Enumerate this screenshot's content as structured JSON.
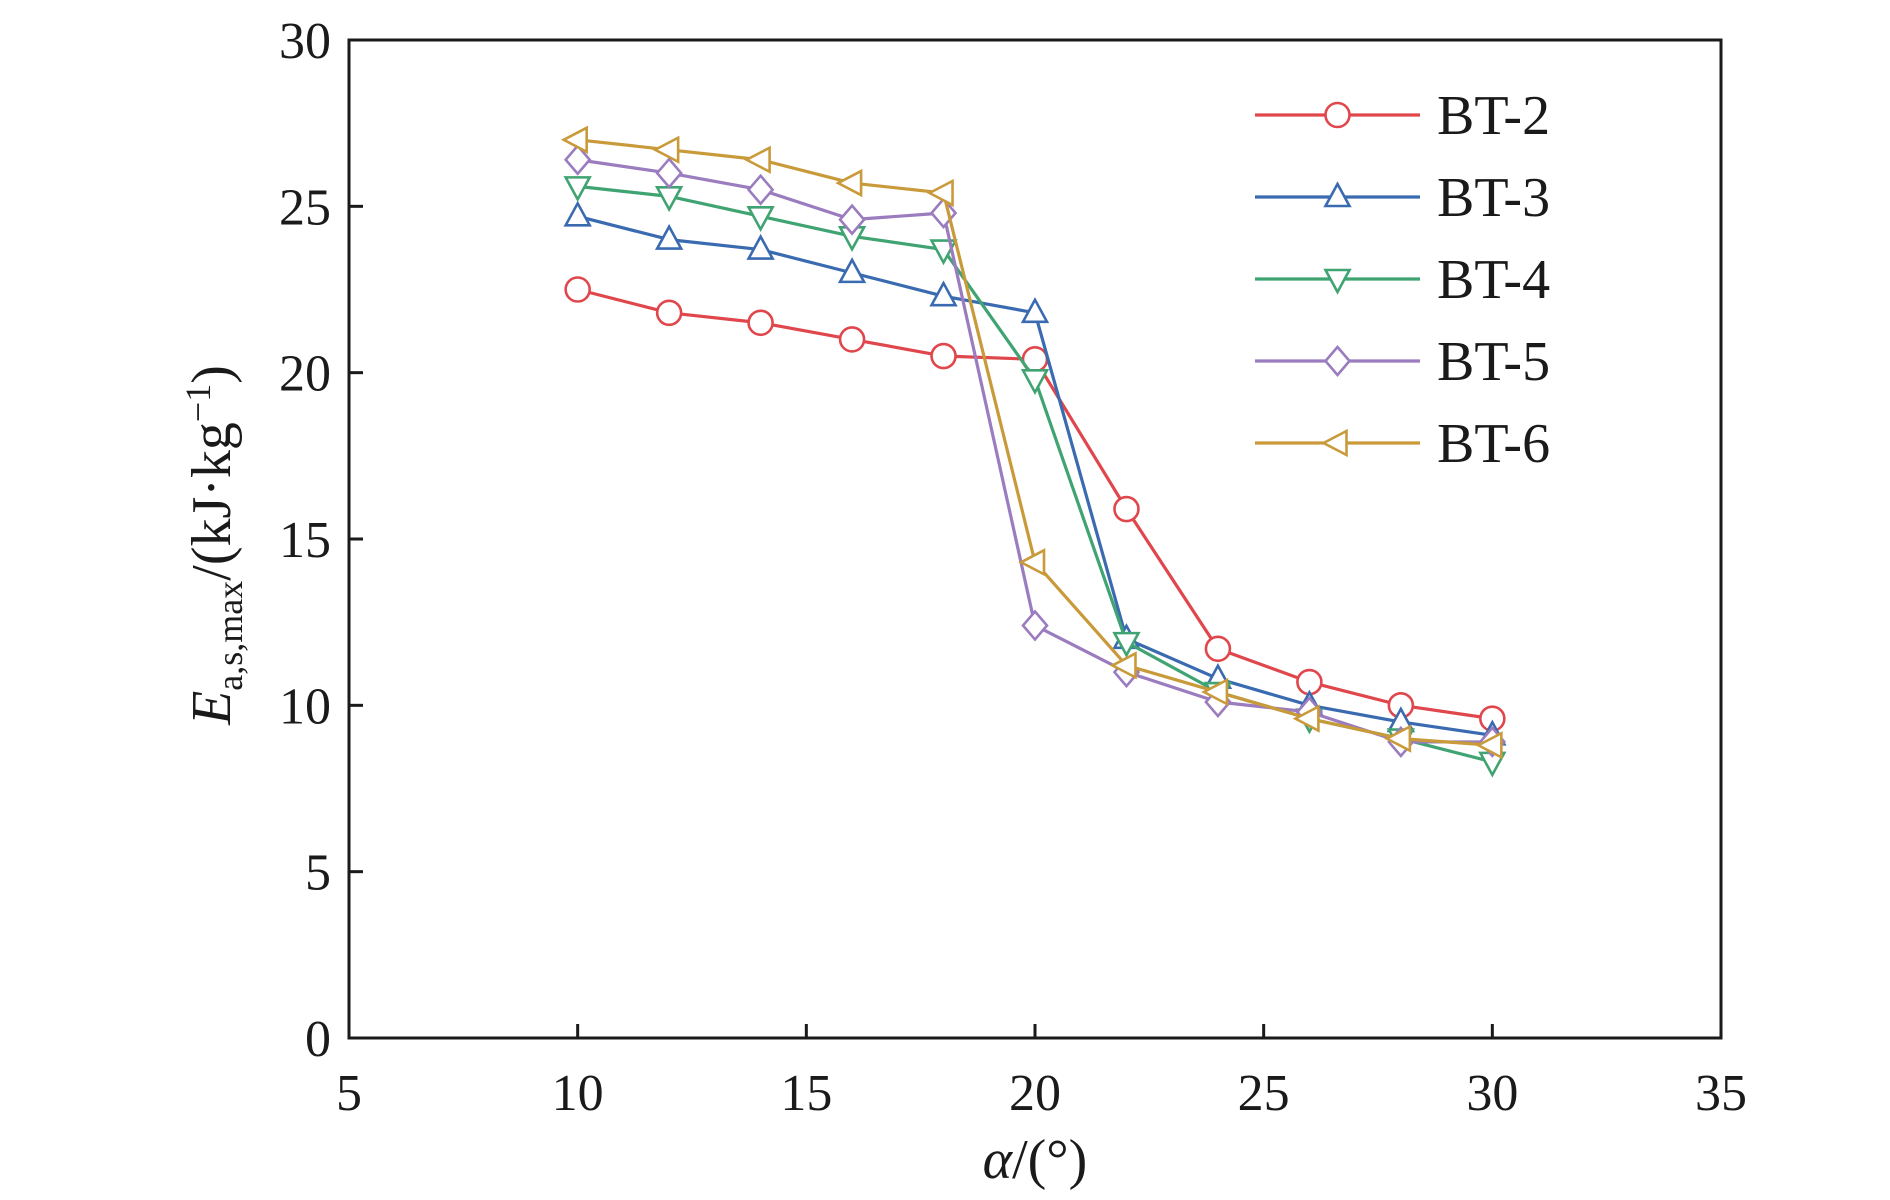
{
  "chart_data": {
    "type": "line",
    "xlabel": {
      "symbol": "α",
      "suffix": "/(°)"
    },
    "ylabel": {
      "main": "E",
      "sub": "a,s,max",
      "unit": "/(kJ·kg",
      "sup": "−1",
      "close": ")"
    },
    "xlim": [
      5,
      35
    ],
    "ylim": [
      0,
      30
    ],
    "xticks": [
      5,
      10,
      15,
      20,
      25,
      30,
      35
    ],
    "yticks": [
      0,
      5,
      10,
      15,
      20,
      25,
      30
    ],
    "grid": false,
    "legend_position": "top-right",
    "x": [
      10,
      12,
      14,
      16,
      18,
      20,
      22,
      24,
      26,
      28,
      30
    ],
    "series": [
      {
        "name": "BT-2",
        "color": "#e0474c",
        "marker": "circle",
        "values": [
          22.5,
          21.8,
          21.5,
          21.0,
          20.5,
          20.4,
          15.9,
          11.7,
          10.7,
          10.0,
          9.6
        ]
      },
      {
        "name": "BT-3",
        "color": "#3a6bb0",
        "marker": "triangle-up",
        "values": [
          24.7,
          24.0,
          23.7,
          23.0,
          22.3,
          21.8,
          12.0,
          10.8,
          10.0,
          9.5,
          9.1
        ]
      },
      {
        "name": "BT-4",
        "color": "#3fa372",
        "marker": "triangle-down",
        "values": [
          25.6,
          25.3,
          24.7,
          24.1,
          23.7,
          19.8,
          11.9,
          10.4,
          9.6,
          9.0,
          8.3
        ]
      },
      {
        "name": "BT-5",
        "color": "#9a7cbf",
        "marker": "diamond",
        "values": [
          26.4,
          26.0,
          25.5,
          24.6,
          24.8,
          12.4,
          11.0,
          10.1,
          9.8,
          8.9,
          8.9
        ]
      },
      {
        "name": "BT-6",
        "color": "#c99a3a",
        "marker": "triangle-left",
        "values": [
          27.0,
          26.7,
          26.4,
          25.7,
          25.4,
          14.3,
          11.2,
          10.4,
          9.6,
          9.0,
          8.8
        ]
      }
    ]
  }
}
